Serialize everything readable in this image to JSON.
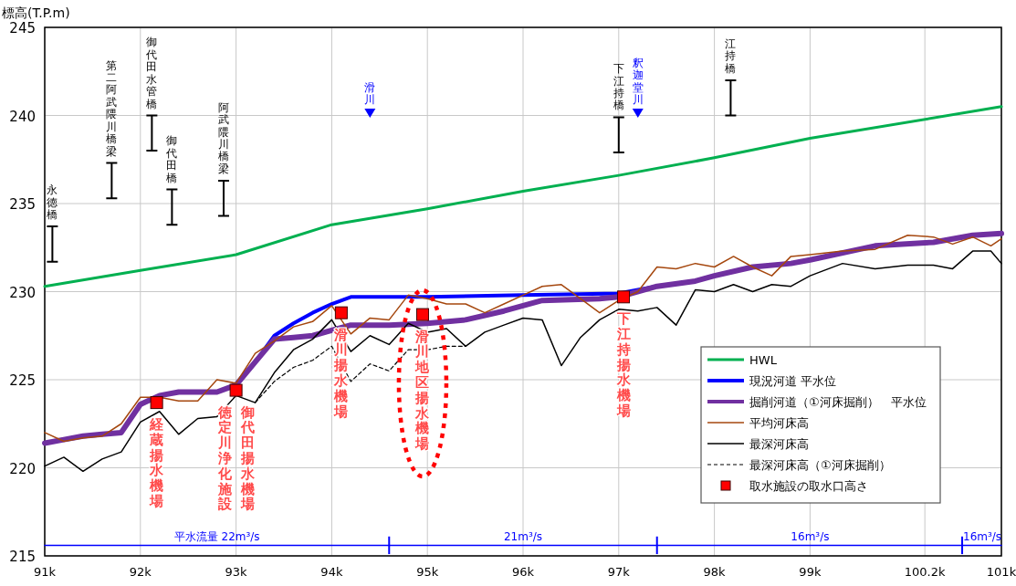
{
  "chart_data": {
    "type": "line",
    "ylabel": "標高(T.P.m)",
    "xlim": [
      91,
      101
    ],
    "ylim": [
      215,
      245
    ],
    "xticks": [
      {
        "value": 91,
        "label": "91k"
      },
      {
        "value": 92,
        "label": "92k"
      },
      {
        "value": 93,
        "label": "93k"
      },
      {
        "value": 94,
        "label": "94k"
      },
      {
        "value": 95,
        "label": "95k"
      },
      {
        "value": 96,
        "label": "96k"
      },
      {
        "value": 97,
        "label": "97k"
      },
      {
        "value": 98,
        "label": "98k"
      },
      {
        "value": 99,
        "label": "99k"
      },
      {
        "value": 100.2,
        "label": "100.2k"
      },
      {
        "value": 101,
        "label": "101k"
      }
    ],
    "yticks": [
      215,
      220,
      225,
      230,
      235,
      240,
      245
    ],
    "grid": true,
    "legend": "bottom right",
    "series": [
      {
        "name": "HWL",
        "color": "#00b050",
        "x": [
          91,
          92,
          93,
          94,
          95,
          96,
          97,
          98,
          99,
          101
        ],
        "values": [
          230.3,
          231.2,
          232.1,
          233.8,
          234.7,
          235.7,
          236.6,
          237.6,
          238.7,
          240.5
        ]
      },
      {
        "name": "現況河道 平水位",
        "color": "#0000ff",
        "x": [
          93,
          93.2,
          93.4,
          93.6,
          93.8,
          94,
          94.2,
          95,
          96,
          97,
          97.2,
          97.4
        ],
        "values": [
          224.7,
          226.0,
          227.5,
          228.2,
          228.8,
          229.3,
          229.7,
          229.7,
          229.8,
          229.9,
          230.1,
          230.3
        ]
      },
      {
        "name": "掘削河道（①河床掘削）　平水位",
        "color": "#7030a0",
        "x": [
          91,
          91.2,
          91.4,
          91.6,
          91.8,
          92,
          92.2,
          92.4,
          92.8,
          93,
          93.2,
          93.4,
          93.6,
          93.8,
          94,
          94.2,
          94.6,
          95,
          95.4,
          95.8,
          96.2,
          96.8,
          97,
          97.4,
          97.8,
          98,
          98.4,
          98.8,
          99,
          99.68,
          100.29,
          100.7,
          101
        ],
        "values": [
          221.4,
          221.6,
          221.8,
          221.9,
          222.0,
          223.6,
          224.1,
          224.3,
          224.3,
          224.7,
          226.0,
          227.3,
          227.4,
          227.5,
          227.8,
          228.1,
          228.1,
          228.2,
          228.4,
          228.9,
          229.5,
          229.6,
          229.7,
          230.3,
          230.6,
          230.9,
          231.4,
          231.6,
          231.8,
          232.6,
          232.8,
          233.2,
          233.3
        ]
      },
      {
        "name": "平均河床高",
        "color": "#a5470e",
        "x": [
          91,
          91.2,
          91.4,
          91.6,
          91.8,
          92,
          92.2,
          92.4,
          92.6,
          92.8,
          93,
          93.2,
          93.4,
          93.6,
          93.8,
          94,
          94.2,
          94.4,
          94.6,
          94.8,
          95,
          95.2,
          95.4,
          95.6,
          95.8,
          96,
          96.2,
          96.4,
          96.6,
          96.8,
          97,
          97.2,
          97.4,
          97.6,
          97.8,
          98,
          98.2,
          98.4,
          98.6,
          98.8,
          99,
          99.34,
          99.68,
          100.02,
          100.29,
          100.49,
          100.7,
          100.89,
          101
        ],
        "values": [
          222.0,
          221.5,
          221.7,
          221.8,
          222.5,
          224.0,
          224.0,
          223.8,
          223.8,
          225.0,
          224.8,
          226.5,
          227.2,
          228.0,
          228.3,
          229.2,
          227.6,
          228.5,
          228.4,
          229.8,
          229.6,
          229.3,
          229.3,
          228.8,
          229.3,
          229.8,
          230.3,
          230.4,
          229.6,
          228.8,
          229.5,
          230.0,
          231.4,
          231.3,
          231.6,
          231.4,
          232.0,
          231.4,
          230.9,
          232.0,
          232.1,
          232.3,
          232.4,
          233.2,
          233.1,
          232.7,
          233.1,
          232.6,
          233.0
        ]
      },
      {
        "name": "最深河床高",
        "color": "#000000",
        "x": [
          91,
          91.2,
          91.4,
          91.6,
          91.8,
          92,
          92.2,
          92.4,
          92.6,
          92.8,
          93,
          93.2,
          93.4,
          93.6,
          93.8,
          94,
          94.2,
          94.4,
          94.6,
          94.8,
          95,
          95.2,
          95.4,
          95.6,
          95.8,
          96,
          96.2,
          96.4,
          96.6,
          96.8,
          97,
          97.2,
          97.4,
          97.6,
          97.8,
          98,
          98.2,
          98.4,
          98.6,
          98.8,
          99,
          99.34,
          99.68,
          100.02,
          100.29,
          100.49,
          100.7,
          100.89,
          101
        ],
        "values": [
          220.1,
          220.6,
          219.8,
          220.5,
          220.9,
          222.6,
          223.2,
          221.9,
          222.8,
          222.9,
          224.1,
          223.7,
          225.4,
          226.7,
          227.3,
          228.4,
          226.6,
          227.5,
          227.0,
          228.2,
          227.7,
          227.9,
          226.9,
          227.7,
          228.1,
          228.5,
          228.4,
          225.8,
          227.4,
          228.4,
          229.0,
          228.9,
          229.1,
          228.1,
          230.1,
          230.0,
          230.4,
          230.0,
          230.4,
          230.3,
          230.9,
          231.6,
          231.3,
          231.5,
          231.5,
          231.3,
          232.3,
          232.3,
          231.6
        ]
      },
      {
        "name": "最深河床高（①河床掘削）",
        "line_style": "dashed",
        "color": "#000000",
        "x": [
          93.2,
          93.4,
          93.6,
          93.8,
          94,
          94.2,
          94.4,
          94.6,
          94.8,
          95,
          95.2,
          95.4
        ],
        "values": [
          223.7,
          224.9,
          225.7,
          226.1,
          226.9,
          224.9,
          225.9,
          225.5,
          226.7,
          226.7,
          226.9,
          226.9
        ]
      },
      {
        "name": "取水施設の取水口高さ",
        "type": "scatter",
        "marker": "square",
        "color": "#ff0000",
        "x": [
          92.17,
          93,
          94.1,
          94.95,
          97.05
        ],
        "values": [
          223.7,
          224.4,
          228.8,
          228.7,
          229.7
        ]
      },
      {
        "type": "bar",
        "color": "#000000",
        "x": [
          91.08,
          91.7,
          92.12,
          92.33,
          92.87,
          97,
          98.17
        ],
        "base": [
          231.7,
          235.3,
          238.0,
          233.8,
          234.3,
          237.9,
          240.0
        ],
        "values": [
          2,
          2,
          2,
          2,
          2,
          2,
          2
        ]
      },
      {
        "color": "#0000ff",
        "x": [
          91,
          101
        ],
        "values": [
          215.6,
          215.6
        ]
      },
      {
        "type": "bar",
        "color": "#0000ff",
        "x": [
          94.6,
          97.4,
          100.59
        ],
        "base": [
          215.1,
          215.1,
          215.1
        ],
        "values": [
          1,
          1,
          1
        ]
      }
    ],
    "annotations": [
      {
        "text": "永徳橋",
        "x": 91.08,
        "y": 233.7
      },
      {
        "text": "第二阿武隈川橋梁",
        "x": 91.7,
        "y": 237.3
      },
      {
        "text": "御代田水管橋",
        "x": 92.12,
        "y": 240.0
      },
      {
        "text": "御代田橋",
        "x": 92.33,
        "y": 235.8
      },
      {
        "text": "阿武隈川橋梁",
        "x": 92.87,
        "y": 236.3
      },
      {
        "text": "下江持橋",
        "x": 97,
        "y": 239.9
      },
      {
        "text": "江持橋",
        "x": 98.17,
        "y": 242.0
      },
      "滑川",
      "釈迦堂川",
      {
        "text": "経蔵揚水機場",
        "x": 92.17,
        "y": 223.7
      },
      {
        "text": "徳定川浄化施設",
        "x": 93,
        "y": 224.4
      },
      {
        "text": "御代田揚水機場",
        "x": 93,
        "y": 224.4
      },
      {
        "text": "滑川揚水機場",
        "x": 94.1,
        "y": 228.8
      },
      {
        "text": "滑川地区揚水機場",
        "x": 94.95,
        "y": 228.7
      },
      {
        "text": "下江持揚水機場",
        "x": 97.05,
        "y": 229.7
      },
      {
        "text": "平水流量 22m³/s",
        "x": 92.8,
        "y": 215.6
      },
      {
        "text": "21m³/s",
        "x": 96,
        "y": 215.6
      },
      {
        "text": "16m³/s",
        "x": 99,
        "y": 215.6
      },
      {
        "text": "16m³/s",
        "x": 100.8,
        "y": 215.6
      }
    ]
  }
}
